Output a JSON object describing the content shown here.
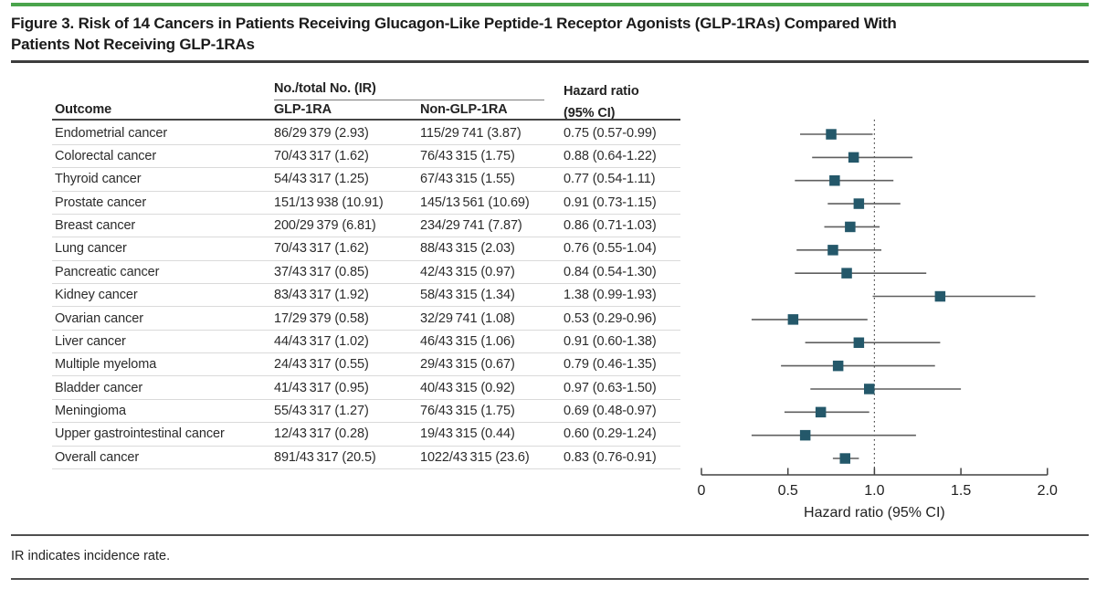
{
  "figure": {
    "title_lines": [
      "Figure 3. Risk of 14 Cancers in Patients Receiving Glucagon-Like Peptide-1 Receptor Agonists (GLP-1RAs) Compared With",
      "Patients Not Receiving GLP-1RAs"
    ],
    "footnote": "IR indicates incidence rate."
  },
  "table": {
    "group_header": "No./total No. (IR)",
    "col_outcome": "Outcome",
    "col_glp1ra": "GLP-1RA",
    "col_non_glp1ra": "Non-GLP-1RA",
    "col_hr_line1": "Hazard ratio",
    "col_hr_line2": "(95% CI)"
  },
  "chart_data": {
    "type": "scatter",
    "subtype": "forest-plot",
    "title": "Risk of 14 Cancers in Patients Receiving GLP-1RAs Compared With Patients Not Receiving GLP-1RAs",
    "xlabel": "Hazard ratio (95% CI)",
    "xlim": [
      0,
      2.0
    ],
    "ref_line": 1.0,
    "grid": false,
    "x_ticks": [
      {
        "label": "0",
        "value": 0
      },
      {
        "label": "0.5",
        "value": 0.5
      },
      {
        "label": "1.0",
        "value": 1.0
      },
      {
        "label": "1.5",
        "value": 1.5
      },
      {
        "label": "2.0",
        "value": 2.0
      }
    ],
    "rows": [
      {
        "outcome": "Endometrial cancer",
        "glp1ra": "86/29 379 (2.93)",
        "non_glp1ra": "115/29 741 (3.87)",
        "hr_ci": "0.75 (0.57-0.99)",
        "hr": 0.75,
        "lo": 0.57,
        "hi": 0.99
      },
      {
        "outcome": "Colorectal cancer",
        "glp1ra": "70/43 317 (1.62)",
        "non_glp1ra": "76/43 315 (1.75)",
        "hr_ci": "0.88 (0.64-1.22)",
        "hr": 0.88,
        "lo": 0.64,
        "hi": 1.22
      },
      {
        "outcome": "Thyroid cancer",
        "glp1ra": "54/43 317 (1.25)",
        "non_glp1ra": "67/43 315 (1.55)",
        "hr_ci": "0.77 (0.54-1.11)",
        "hr": 0.77,
        "lo": 0.54,
        "hi": 1.11
      },
      {
        "outcome": "Prostate cancer",
        "glp1ra": "151/13 938 (10.91)",
        "non_glp1ra": "145/13 561 (10.69)",
        "hr_ci": "0.91 (0.73-1.15)",
        "hr": 0.91,
        "lo": 0.73,
        "hi": 1.15
      },
      {
        "outcome": "Breast cancer",
        "glp1ra": "200/29 379 (6.81)",
        "non_glp1ra": "234/29 741 (7.87)",
        "hr_ci": "0.86 (0.71-1.03)",
        "hr": 0.86,
        "lo": 0.71,
        "hi": 1.03
      },
      {
        "outcome": "Lung cancer",
        "glp1ra": "70/43 317 (1.62)",
        "non_glp1ra": "88/43 315 (2.03)",
        "hr_ci": "0.76 (0.55-1.04)",
        "hr": 0.76,
        "lo": 0.55,
        "hi": 1.04
      },
      {
        "outcome": "Pancreatic cancer",
        "glp1ra": "37/43 317 (0.85)",
        "non_glp1ra": "42/43 315 (0.97)",
        "hr_ci": "0.84 (0.54-1.30)",
        "hr": 0.84,
        "lo": 0.54,
        "hi": 1.3
      },
      {
        "outcome": "Kidney cancer",
        "glp1ra": "83/43 317 (1.92)",
        "non_glp1ra": "58/43 315 (1.34)",
        "hr_ci": "1.38 (0.99-1.93)",
        "hr": 1.38,
        "lo": 0.99,
        "hi": 1.93
      },
      {
        "outcome": "Ovarian cancer",
        "glp1ra": "17/29 379 (0.58)",
        "non_glp1ra": "32/29 741 (1.08)",
        "hr_ci": "0.53 (0.29-0.96)",
        "hr": 0.53,
        "lo": 0.29,
        "hi": 0.96
      },
      {
        "outcome": "Liver cancer",
        "glp1ra": "44/43 317 (1.02)",
        "non_glp1ra": "46/43 315 (1.06)",
        "hr_ci": "0.91 (0.60-1.38)",
        "hr": 0.91,
        "lo": 0.6,
        "hi": 1.38
      },
      {
        "outcome": "Multiple myeloma",
        "glp1ra": "24/43 317 (0.55)",
        "non_glp1ra": "29/43 315 (0.67)",
        "hr_ci": "0.79 (0.46-1.35)",
        "hr": 0.79,
        "lo": 0.46,
        "hi": 1.35
      },
      {
        "outcome": "Bladder cancer",
        "glp1ra": "41/43 317 (0.95)",
        "non_glp1ra": "40/43 315 (0.92)",
        "hr_ci": "0.97 (0.63-1.50)",
        "hr": 0.97,
        "lo": 0.63,
        "hi": 1.5
      },
      {
        "outcome": "Meningioma",
        "glp1ra": "55/43 317 (1.27)",
        "non_glp1ra": "76/43 315 (1.75)",
        "hr_ci": "0.69 (0.48-0.97)",
        "hr": 0.69,
        "lo": 0.48,
        "hi": 0.97
      },
      {
        "outcome": "Upper gastrointestinal cancer",
        "glp1ra": "12/43 317 (0.28)",
        "non_glp1ra": "19/43 315 (0.44)",
        "hr_ci": "0.60 (0.29-1.24)",
        "hr": 0.6,
        "lo": 0.29,
        "hi": 1.24
      },
      {
        "outcome": "Overall cancer",
        "glp1ra": "891/43 317 (20.5)",
        "non_glp1ra": "1022/43 315 (23.6)",
        "hr_ci": "0.83 (0.76-0.91)",
        "hr": 0.83,
        "lo": 0.76,
        "hi": 0.91
      }
    ]
  },
  "colors": {
    "accent_bar": "#4aa44c",
    "marker": "#24586a",
    "ci_line": "#5f5f5f",
    "axis": "#424242",
    "ref_line": "#4d4d4d"
  }
}
